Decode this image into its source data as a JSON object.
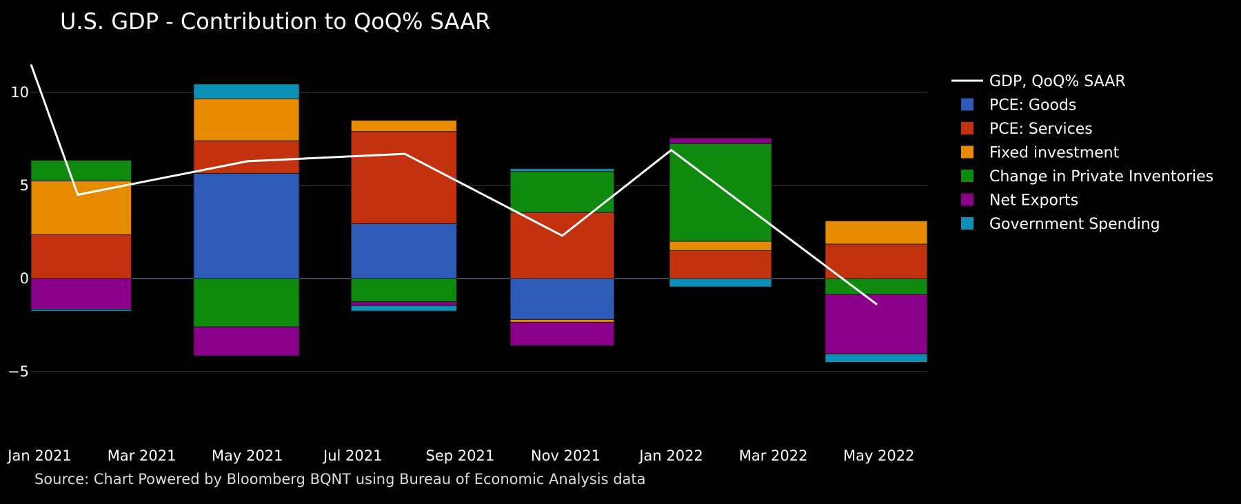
{
  "chart_data": {
    "type": "bar",
    "stacked": true,
    "title": "U.S. GDP - Contribution to QoQ% SAAR",
    "source": "Source: Chart Powered by Bloomberg BQNT using Bureau of Economic Analysis data",
    "xlabel": "",
    "ylabel": "",
    "ylim": [
      -8.0,
      12.0
    ],
    "xlim": [
      "2020-12-27",
      "2022-05-29"
    ],
    "y_ticks": [
      -5,
      0,
      5,
      10
    ],
    "y_tick_labels": [
      "−5",
      "0",
      "5",
      "10"
    ],
    "x_ticks": [
      "2021-01-01",
      "2021-03-01",
      "2021-05-01",
      "2021-07-01",
      "2021-09-01",
      "2021-11-01",
      "2022-01-01",
      "2022-03-01",
      "2022-05-01"
    ],
    "x_tick_labels": [
      "Jan 2021",
      "Mar 2021",
      "May 2021",
      "Jul 2021",
      "Sep 2021",
      "Nov 2021",
      "Jan 2022",
      "Mar 2022",
      "May 2022"
    ],
    "grid": true,
    "legend_position": "right",
    "bars": [
      {
        "start": "2020-12-27",
        "end": "2021-02-23"
      },
      {
        "start": "2021-03-31",
        "end": "2021-05-31"
      },
      {
        "start": "2021-06-30",
        "end": "2021-08-30"
      },
      {
        "start": "2021-09-30",
        "end": "2021-11-29"
      },
      {
        "start": "2021-12-31",
        "end": "2022-02-28"
      },
      {
        "start": "2022-03-31",
        "end": "2022-05-29"
      }
    ],
    "series": [
      {
        "name": "PCE: Goods",
        "color": "#2e5cb8",
        "values": [
          0.0,
          5.65,
          2.95,
          -2.2,
          0.0,
          0.0
        ]
      },
      {
        "name": "PCE: Services",
        "color": "#c2320f",
        "values": [
          2.35,
          1.75,
          4.95,
          3.55,
          1.5,
          1.85
        ]
      },
      {
        "name": "Fixed investment",
        "color": "#e68a00",
        "values": [
          2.9,
          2.25,
          0.6,
          -0.15,
          0.5,
          1.25
        ]
      },
      {
        "name": "Change in Private Inventories",
        "color": "#0f8a0f",
        "values": [
          1.1,
          -2.6,
          -1.25,
          2.2,
          5.25,
          -0.85
        ]
      },
      {
        "name": "Net Exports",
        "color": "#8b008b",
        "values": [
          -1.65,
          -1.55,
          -0.2,
          -1.25,
          0.3,
          -3.2
        ]
      },
      {
        "name": "Government Spending",
        "color": "#0e8fb5",
        "values": [
          -0.1,
          0.8,
          -0.3,
          0.15,
          -0.45,
          -0.45
        ]
      }
    ],
    "line": {
      "name": "GDP, QoQ% SAAR",
      "color": "#ffffff",
      "x": [
        "2020-12-27",
        "2021-01-23",
        "2021-05-01",
        "2021-07-31",
        "2021-10-30",
        "2022-01-01",
        "2022-04-30"
      ],
      "y": [
        11.5,
        4.5,
        6.3,
        6.7,
        2.3,
        6.9,
        -1.4
      ]
    }
  }
}
